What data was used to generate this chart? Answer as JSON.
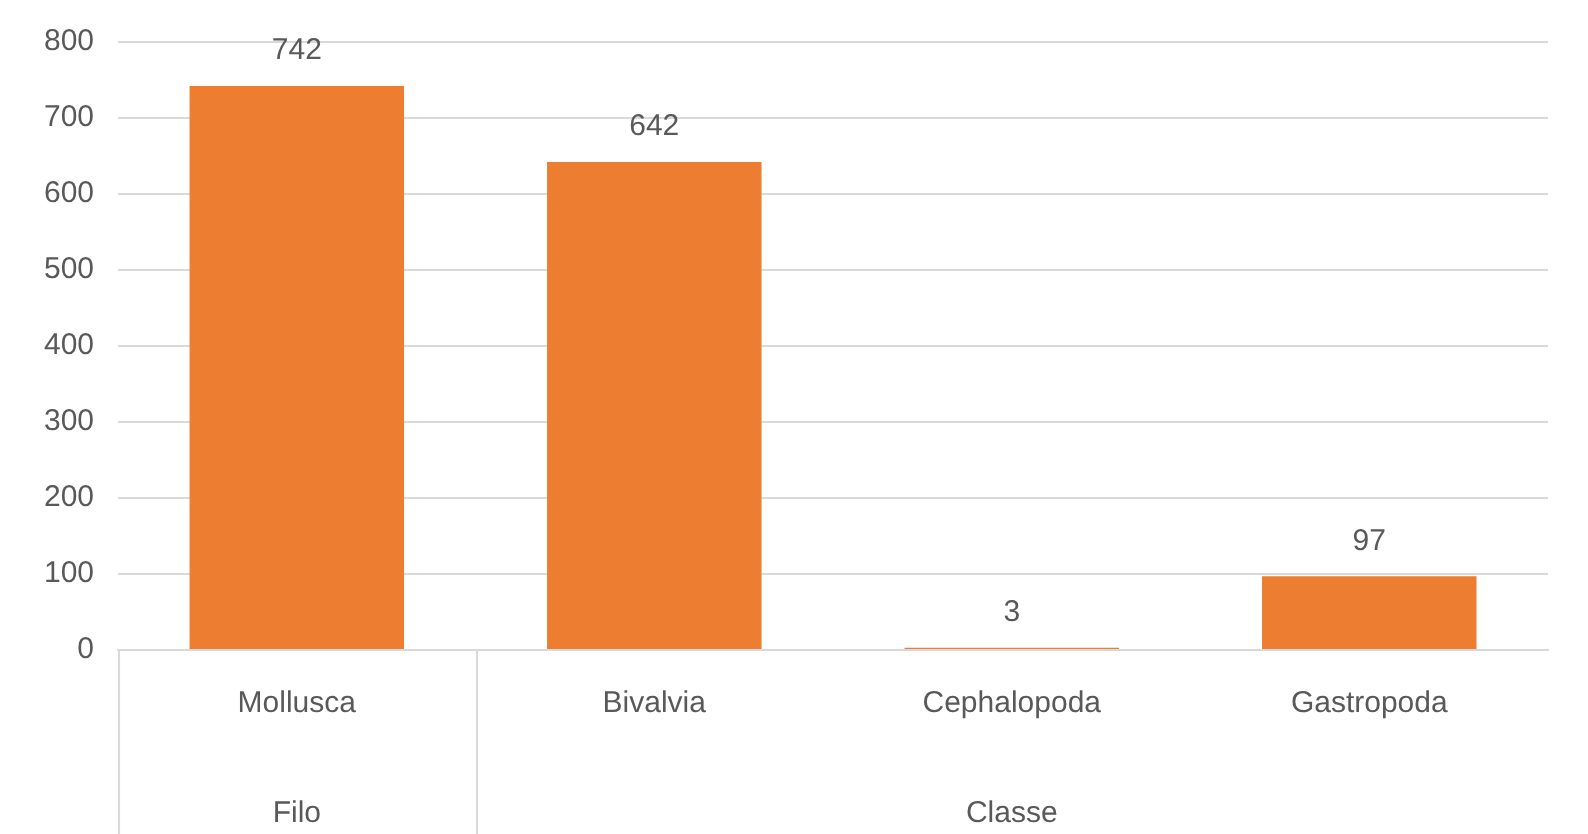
{
  "chart_data": {
    "type": "bar",
    "categories": [
      "Mollusca",
      "Bivalvia",
      "Cephalopoda",
      "Gastropoda"
    ],
    "values": [
      742,
      642,
      3,
      97
    ],
    "color": "#ed7d31",
    "ylim": [
      0,
      800
    ],
    "yticks": [
      0,
      100,
      200,
      300,
      400,
      500,
      600,
      700,
      800
    ],
    "grid": "y",
    "data_labels": true,
    "legend": false,
    "annotations": [
      "Filo",
      "Classe"
    ]
  }
}
